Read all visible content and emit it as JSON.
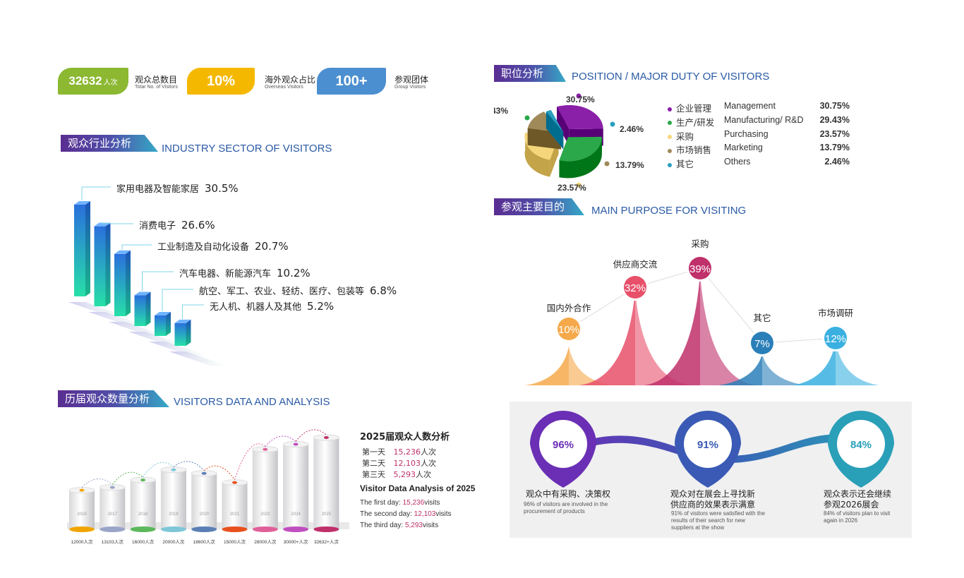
{
  "stats": [
    {
      "value": "32632",
      "unit": "人次",
      "cn": "观众总数目",
      "en": "Totar No. of Visitors",
      "color": "#8cb832"
    },
    {
      "value": "10%",
      "cn": "海外观众占比",
      "en": "Overseas Visitors",
      "color": "#f5b800"
    },
    {
      "value": "100+",
      "cn": "参观团体",
      "en": "Group Visitors",
      "color": "#4c8fd0"
    }
  ],
  "sections": {
    "industry": {
      "cn": "观众行业分析",
      "en": "INDUSTRY SECTOR OF VISITORS"
    },
    "history": {
      "cn": "历届观众数量分析",
      "en": "VISITORS DATA AND ANALYSIS"
    },
    "position": {
      "cn": "职位分析",
      "en": "POSITION / MAJOR DUTY OF VISITORS"
    },
    "purpose": {
      "cn": "参观主要目的",
      "en": "MAIN PURPOSE FOR VISITING"
    }
  },
  "chart_data": [
    {
      "type": "bar",
      "id": "industry",
      "categories": [
        "家用电器及智能家居",
        "消费电子",
        "工业制造及自动化设备",
        "汽车电器、新能源汽车",
        "航空、军工、农业、轻纺、医疗、包装等",
        "无人机、机器人及其他"
      ],
      "values": [
        30.5,
        26.6,
        20.7,
        10.2,
        6.8,
        5.2
      ],
      "value_labels": [
        "30.5%",
        "26.6%",
        "20.7%",
        "10.2%",
        "6.8%",
        "5.2%"
      ]
    },
    {
      "type": "bar",
      "id": "history",
      "categories": [
        "2016",
        "2017",
        "2018",
        "2019",
        "2020",
        "2021",
        "2023",
        "2024",
        "2025"
      ],
      "values": [
        12000,
        13103,
        16000,
        20000,
        18600,
        15000,
        28000,
        30000,
        32632
      ],
      "value_labels": [
        "12000人次",
        "13103人次",
        "16000人次",
        "20000人次",
        "18600人次",
        "15000人次",
        "28000人次",
        "30000+人次",
        "32632+人次"
      ],
      "colors": [
        "#f0a500",
        "#9aa4c8",
        "#5cb85c",
        "#7fc6d8",
        "#5a7fb5",
        "#e8501e",
        "#e0609a",
        "#c04fc0",
        "#c0306a"
      ]
    },
    {
      "type": "pie",
      "id": "position",
      "series": [
        {
          "cn": "企业管理",
          "en": "Management",
          "value": 30.75,
          "label": "30.75%",
          "color": "#8a1fa8"
        },
        {
          "cn": "生产/研发",
          "en": "Manufacturing/ R&D",
          "value": 29.43,
          "label": "29.43%",
          "color": "#2aa84a"
        },
        {
          "cn": "采购",
          "en": "Purchasing",
          "value": 23.57,
          "label": "23.57%",
          "color": "#f6d67a"
        },
        {
          "cn": "市场销售",
          "en": "Marketing",
          "value": 13.79,
          "label": "13.79%",
          "color": "#a08a5a"
        },
        {
          "cn": "其它",
          "en": "Others",
          "value": 2.46,
          "label": "2.46%",
          "color": "#2a9fc0"
        }
      ]
    },
    {
      "type": "area",
      "id": "purpose",
      "categories": [
        "国内外合作",
        "供应商交流",
        "采购",
        "其它",
        "市场调研"
      ],
      "values": [
        10,
        32,
        39,
        7,
        12
      ],
      "value_labels": [
        "10%",
        "32%",
        "39%",
        "7%",
        "12%"
      ],
      "colors": [
        "#f5a94a",
        "#e8506a",
        "#c0306a",
        "#2a7fb8",
        "#3ab0e0"
      ]
    }
  ],
  "history_panel": {
    "title_cn": "2025届观众人数分析",
    "days_cn": [
      {
        "label": "第一天",
        "value": "15,236",
        "unit": "人次"
      },
      {
        "label": "第二天",
        "value": "12,103",
        "unit": "人次"
      },
      {
        "label": "第三天",
        "value": "5,293",
        "unit": "人次"
      }
    ],
    "title_en": "Visitor Data Analysis of 2025",
    "days_en": [
      {
        "label": "The first day:",
        "value": "15,236",
        "unit": "visits"
      },
      {
        "label": "The second day:",
        "value": "12,103",
        "unit": "visits"
      },
      {
        "label": "The third day:",
        "value": "5,293",
        "unit": "visits"
      }
    ]
  },
  "drops": [
    {
      "pct": "96%",
      "cn": "观众中有采购、决策权",
      "en": "96% of visitors are involved in the procurement of products",
      "color": "#6a2fb5"
    },
    {
      "pct": "91%",
      "cn": "观众对在展会上寻找新供应商的效果表示满意",
      "en": "91% of visitors were satisfied with the results of their search for new suppliers at the show",
      "color": "#3a5ab5"
    },
    {
      "pct": "84%",
      "cn": "观众表示还会继续参观2026展会",
      "en": "84% of visitors plan to visit again in 2026",
      "color": "#2a9fb8"
    }
  ]
}
